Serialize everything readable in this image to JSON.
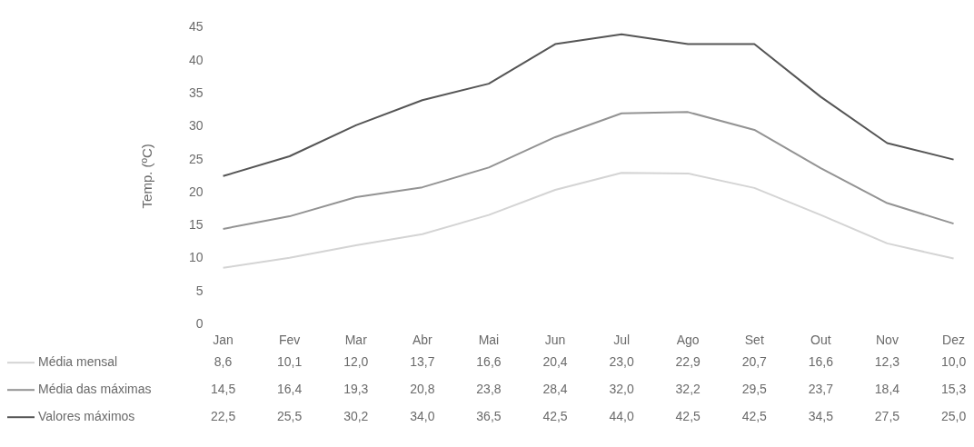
{
  "chart_data": {
    "type": "line",
    "ylabel": "Temp. (ºC)",
    "categories": [
      "Jan",
      "Fev",
      "Mar",
      "Abr",
      "Mai",
      "Jun",
      "Jul",
      "Ago",
      "Set",
      "Out",
      "Nov",
      "Dez"
    ],
    "series": [
      {
        "name": "Média mensal",
        "color": "#d4d4d4",
        "values": [
          8.6,
          10.1,
          12.0,
          13.7,
          16.6,
          20.4,
          23.0,
          22.9,
          20.7,
          16.6,
          12.3,
          10.0
        ],
        "value_labels": [
          "8,6",
          "10,1",
          "12,0",
          "13,7",
          "16,6",
          "20,4",
          "23,0",
          "22,9",
          "20,7",
          "16,6",
          "12,3",
          "10,0"
        ]
      },
      {
        "name": "Média das máximas",
        "color": "#939393",
        "values": [
          14.5,
          16.4,
          19.3,
          20.8,
          23.8,
          28.4,
          32.0,
          32.2,
          29.5,
          23.7,
          18.4,
          15.3
        ],
        "value_labels": [
          "14,5",
          "16,4",
          "19,3",
          "20,8",
          "23,8",
          "28,4",
          "32,0",
          "32,2",
          "29,5",
          "23,7",
          "18,4",
          "15,3"
        ]
      },
      {
        "name": "Valores máximos",
        "color": "#555555",
        "values": [
          22.5,
          25.5,
          30.2,
          34.0,
          36.5,
          42.5,
          44.0,
          42.5,
          42.5,
          34.5,
          27.5,
          25.0
        ],
        "value_labels": [
          "22,5",
          "25,5",
          "30,2",
          "34,0",
          "36,5",
          "42,5",
          "44,0",
          "42,5",
          "42,5",
          "34,5",
          "27,5",
          "25,0"
        ]
      }
    ],
    "ylim": [
      0,
      45
    ],
    "yticks": [
      0,
      5,
      10,
      15,
      20,
      25,
      30,
      35,
      40,
      45
    ],
    "grid": false,
    "legend": "bottom",
    "marker": "none",
    "line_style": "solid"
  }
}
